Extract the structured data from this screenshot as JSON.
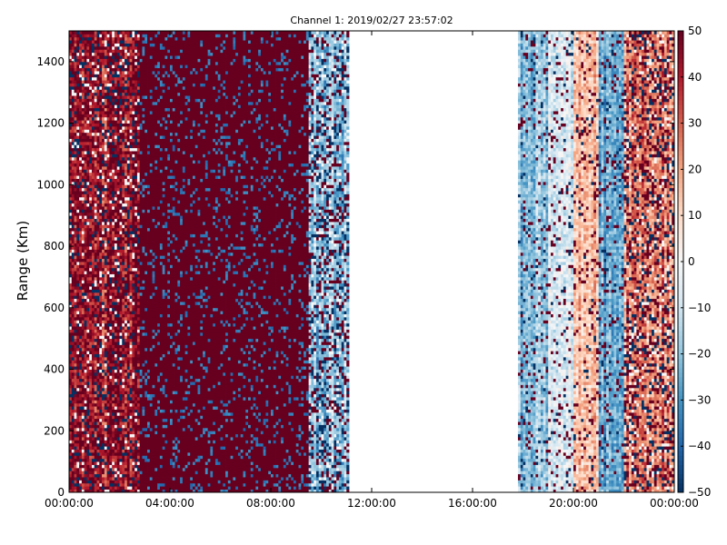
{
  "chart_data": {
    "type": "heatmap",
    "title": "Channel 1: 2019/02/27 23:57:02",
    "xlabel": "",
    "ylabel": "Range (Km)",
    "x_ticks": [
      "00:00:00",
      "04:00:00",
      "08:00:00",
      "12:00:00",
      "16:00:00",
      "20:00:00",
      "00:00:00"
    ],
    "x_range_hours": [
      0,
      24
    ],
    "y_ticks": [
      0,
      200,
      400,
      600,
      800,
      1000,
      1200,
      1400
    ],
    "ylim": [
      0,
      1500
    ],
    "colorbar": {
      "colormap": "RdBu_r",
      "range": [
        -50,
        50
      ],
      "ticks": [
        -50,
        -40,
        -30,
        -20,
        -10,
        0,
        10,
        20,
        30,
        40,
        50
      ]
    },
    "no_data_interval_hours": [
      11.1,
      17.8
    ],
    "time_bands": [
      {
        "start_hours": 0.0,
        "end_hours": 2.8,
        "mean_value": 40,
        "noise": "high"
      },
      {
        "start_hours": 2.8,
        "end_hours": 9.5,
        "mean_value": 50,
        "noise": "sparse-negative"
      },
      {
        "start_hours": 9.5,
        "end_hours": 11.1,
        "mean_value": -20,
        "noise": "high"
      },
      {
        "start_hours": 17.8,
        "end_hours": 19.0,
        "mean_value": -20,
        "noise": "medium"
      },
      {
        "start_hours": 19.0,
        "end_hours": 20.0,
        "mean_value": -5,
        "noise": "medium"
      },
      {
        "start_hours": 20.0,
        "end_hours": 21.0,
        "mean_value": 15,
        "noise": "medium"
      },
      {
        "start_hours": 21.0,
        "end_hours": 22.0,
        "mean_value": -25,
        "noise": "medium"
      },
      {
        "start_hours": 22.0,
        "end_hours": 24.0,
        "mean_value": 25,
        "noise": "high"
      }
    ]
  }
}
